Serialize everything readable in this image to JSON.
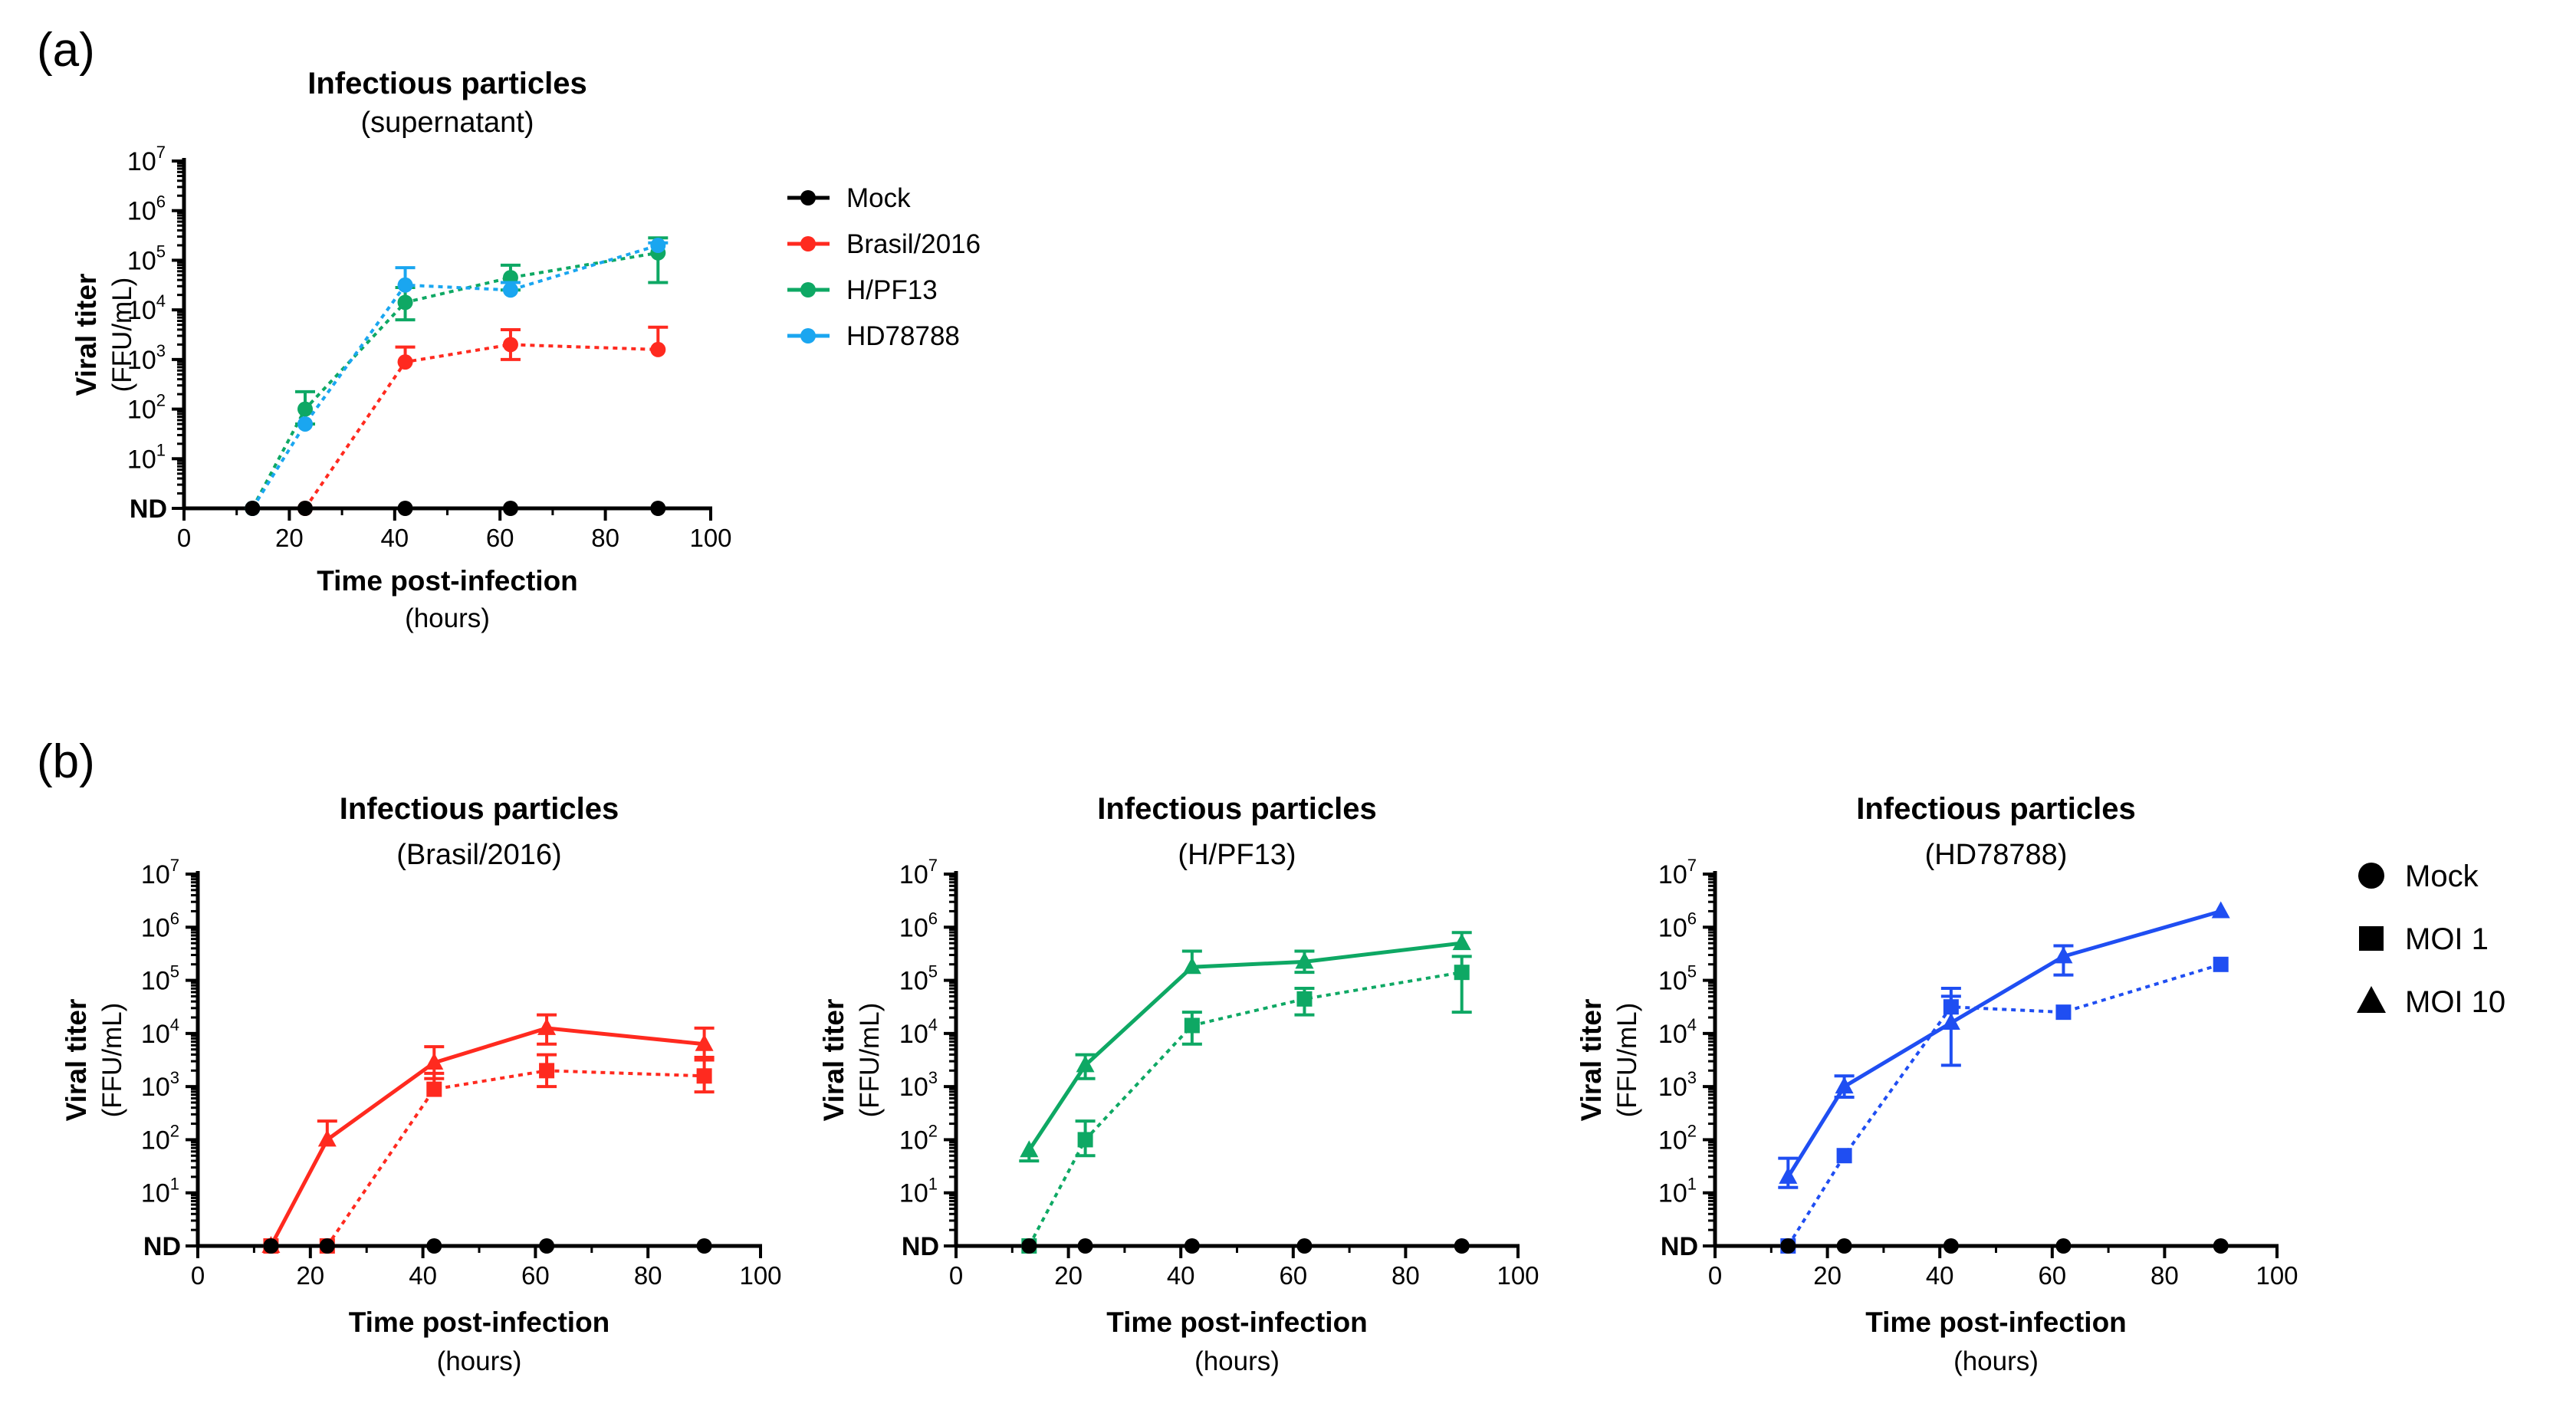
{
  "panels": {
    "a_label": "(a)",
    "b_label": "(b)"
  },
  "common": {
    "y_tick_labels": [
      "ND",
      "10",
      "10",
      "10",
      "10",
      "10",
      "10",
      "10"
    ],
    "y_tick_exponents": [
      "",
      "1",
      "2",
      "3",
      "4",
      "5",
      "6",
      "7"
    ],
    "x_ticks": [
      0,
      20,
      40,
      60,
      80,
      100
    ],
    "ylabel": "Viral titer",
    "ylabel_units": "(FFU/mL)",
    "xlabel": "Time post-infection",
    "xlabel_units": "(hours)"
  },
  "legend_a": [
    {
      "label": "Mock",
      "color": "#000000"
    },
    {
      "label": "Brasil/2016",
      "color": "#ff2a1f"
    },
    {
      "label": "H/PF13",
      "color": "#0ea864"
    },
    {
      "label": "HD78788",
      "color": "#1aa6f0"
    }
  ],
  "legend_b": [
    {
      "label": "Mock",
      "marker": "circle"
    },
    {
      "label": "MOI 1",
      "marker": "square"
    },
    {
      "label": "MOI 10",
      "marker": "triangle"
    }
  ],
  "colors": {
    "mock": "#000000",
    "brasil": "#ff2a1f",
    "hpf13": "#0ea864",
    "hd78788_a": "#1aa6f0",
    "hd78788_b": "#1f4ef2"
  },
  "chart_data": [
    {
      "id": "a",
      "type": "line",
      "title": "Infectious particles",
      "subtitle": "(supernatant)",
      "xlabel": "Time post-infection (hours)",
      "ylabel": "Viral titer (FFU/mL)",
      "xlim": [
        0,
        100
      ],
      "ylim_log10": [
        0,
        7
      ],
      "y_scale": "log10, ND at bottom",
      "series": [
        {
          "name": "Mock",
          "color": "#000000",
          "marker": "circle",
          "style": "solid",
          "x": [
            13,
            23,
            42,
            62,
            90
          ],
          "log10y": [
            0,
            0,
            0,
            0,
            0
          ],
          "err_hi": [
            0,
            0,
            0,
            0,
            0
          ],
          "err_lo": [
            0,
            0,
            0,
            0,
            0
          ]
        },
        {
          "name": "Brasil/2016",
          "color": "#ff2a1f",
          "marker": "circle",
          "style": "dotted",
          "x": [
            23,
            42,
            62,
            90
          ],
          "log10y": [
            0,
            2.95,
            3.3,
            3.2
          ],
          "err_hi": [
            0,
            0.3,
            0.3,
            0.45
          ],
          "err_lo": [
            0,
            0,
            0.3,
            0
          ]
        },
        {
          "name": "H/PF13",
          "color": "#0ea864",
          "marker": "circle",
          "style": "dotted",
          "x": [
            13,
            23,
            42,
            62,
            90
          ],
          "log10y": [
            0,
            2.0,
            4.15,
            4.65,
            5.15
          ],
          "err_hi": [
            0,
            0.35,
            0.3,
            0.25,
            0.3
          ],
          "err_lo": [
            0,
            0.3,
            0.35,
            0.25,
            0.6
          ]
        },
        {
          "name": "HD78788",
          "color": "#1aa6f0",
          "marker": "circle",
          "style": "dotted",
          "x": [
            13,
            23,
            42,
            62,
            90
          ],
          "log10y": [
            0,
            1.7,
            4.5,
            4.4,
            5.3
          ],
          "err_hi": [
            0,
            0,
            0.35,
            0.15,
            0.05
          ],
          "err_lo": [
            0,
            0,
            0,
            0,
            0
          ]
        }
      ]
    },
    {
      "id": "b1",
      "type": "line",
      "title": "Infectious particles",
      "subtitle": "(Brasil/2016)",
      "xlabel": "Time post-infection (hours)",
      "ylabel": "Viral titer (FFU/mL)",
      "xlim": [
        0,
        100
      ],
      "ylim_log10": [
        0,
        7
      ],
      "series": [
        {
          "name": "Mock",
          "color": "#000000",
          "marker": "circle",
          "style": "solid",
          "x": [
            13,
            23,
            42,
            62,
            90
          ],
          "log10y": [
            0,
            0,
            0,
            0,
            0
          ],
          "err_hi": [
            0,
            0,
            0,
            0,
            0
          ],
          "err_lo": [
            0,
            0,
            0,
            0,
            0
          ]
        },
        {
          "name": "MOI 1",
          "color": "#ff2a1f",
          "marker": "square",
          "style": "dotted",
          "x": [
            13,
            23,
            42,
            62,
            90
          ],
          "log10y": [
            0,
            0,
            2.95,
            3.3,
            3.2
          ],
          "err_hi": [
            0,
            0,
            0.3,
            0.3,
            0.35
          ],
          "err_lo": [
            0,
            0,
            0,
            0.3,
            0.3
          ]
        },
        {
          "name": "MOI 10",
          "color": "#ff2a1f",
          "marker": "triangle",
          "style": "solid",
          "x": [
            13,
            23,
            42,
            62,
            90
          ],
          "log10y": [
            0,
            2.0,
            3.45,
            4.1,
            3.8
          ],
          "err_hi": [
            0,
            0.35,
            0.3,
            0.25,
            0.3
          ],
          "err_lo": [
            0,
            0,
            0.3,
            0.3,
            0.3
          ]
        }
      ]
    },
    {
      "id": "b2",
      "type": "line",
      "title": "Infectious particles",
      "subtitle": "(H/PF13)",
      "xlabel": "Time post-infection (hours)",
      "ylabel": "Viral titer (FFU/mL)",
      "xlim": [
        0,
        100
      ],
      "ylim_log10": [
        0,
        7
      ],
      "series": [
        {
          "name": "Mock",
          "color": "#000000",
          "marker": "circle",
          "style": "solid",
          "x": [
            13,
            23,
            42,
            62,
            90
          ],
          "log10y": [
            0,
            0,
            0,
            0,
            0
          ],
          "err_hi": [
            0,
            0,
            0,
            0,
            0
          ],
          "err_lo": [
            0,
            0,
            0,
            0,
            0
          ]
        },
        {
          "name": "MOI 1",
          "color": "#0ea864",
          "marker": "square",
          "style": "dotted",
          "x": [
            13,
            23,
            42,
            62,
            90
          ],
          "log10y": [
            0,
            2.0,
            4.15,
            4.65,
            5.15
          ],
          "err_hi": [
            0,
            0.35,
            0.25,
            0.2,
            0.3
          ],
          "err_lo": [
            0,
            0.3,
            0.35,
            0.3,
            0.75
          ]
        },
        {
          "name": "MOI 10",
          "color": "#0ea864",
          "marker": "triangle",
          "style": "solid",
          "x": [
            13,
            23,
            42,
            62,
            90
          ],
          "log10y": [
            1.8,
            3.4,
            5.25,
            5.35,
            5.7
          ],
          "err_hi": [
            0,
            0.2,
            0.3,
            0.2,
            0.2
          ],
          "err_lo": [
            0.2,
            0.25,
            0,
            0.2,
            0
          ]
        }
      ]
    },
    {
      "id": "b3",
      "type": "line",
      "title": "Infectious particles",
      "subtitle": "(HD78788)",
      "xlabel": "Time post-infection (hours)",
      "ylabel": "Viral titer (FFU/mL)",
      "xlim": [
        0,
        100
      ],
      "ylim_log10": [
        0,
        7
      ],
      "series": [
        {
          "name": "Mock",
          "color": "#000000",
          "marker": "circle",
          "style": "solid",
          "x": [
            13,
            23,
            42,
            62,
            90
          ],
          "log10y": [
            0,
            0,
            0,
            0,
            0
          ],
          "err_hi": [
            0,
            0,
            0,
            0,
            0
          ],
          "err_lo": [
            0,
            0,
            0,
            0,
            0
          ]
        },
        {
          "name": "MOI 1",
          "color": "#1f4ef2",
          "marker": "square",
          "style": "dotted",
          "x": [
            13,
            23,
            42,
            62,
            90
          ],
          "log10y": [
            0,
            1.7,
            4.5,
            4.4,
            5.3
          ],
          "err_hi": [
            0,
            0,
            0.35,
            0,
            0
          ],
          "err_lo": [
            0,
            0,
            0,
            0,
            0
          ]
        },
        {
          "name": "MOI 10",
          "color": "#1f4ef2",
          "marker": "triangle",
          "style": "solid",
          "x": [
            13,
            23,
            42,
            62,
            90
          ],
          "log10y": [
            1.3,
            3.0,
            4.2,
            5.45,
            6.3
          ],
          "err_hi": [
            0.35,
            0.2,
            0.5,
            0.2,
            0
          ],
          "err_lo": [
            0.2,
            0.2,
            0.8,
            0.35,
            0
          ]
        }
      ]
    }
  ]
}
